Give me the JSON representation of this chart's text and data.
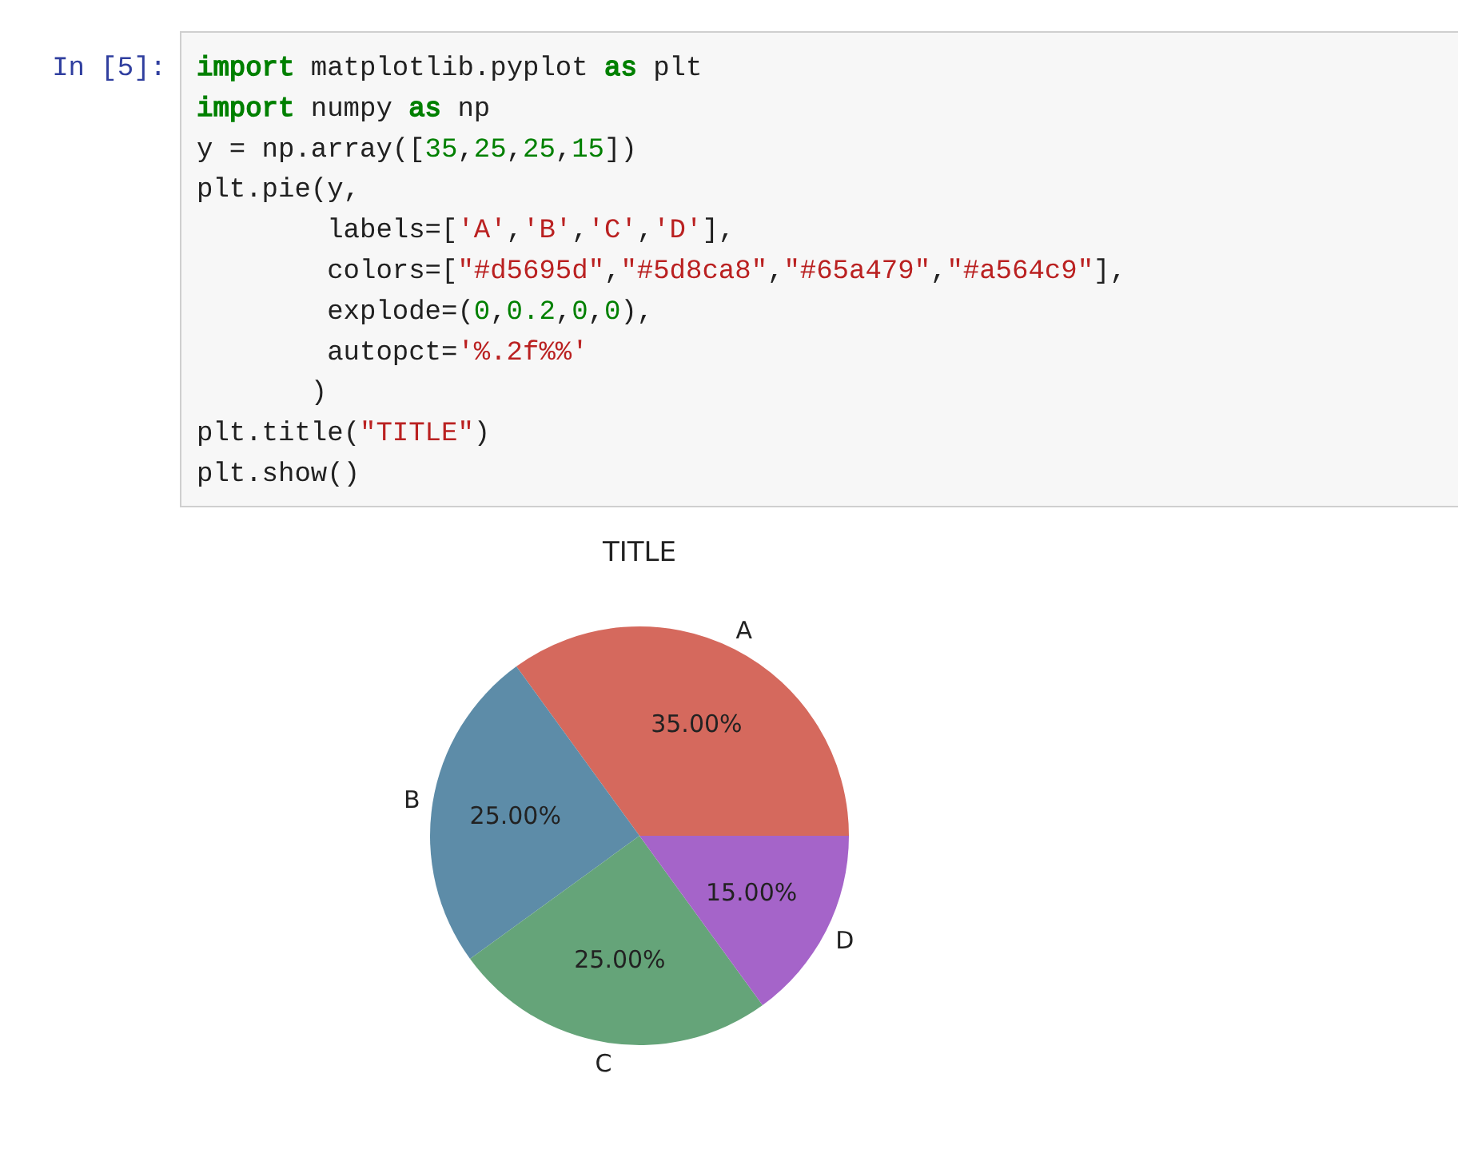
{
  "chart_data": {
    "type": "pie",
    "title": "TITLE",
    "categories": [
      "A",
      "B",
      "C",
      "D"
    ],
    "values": [
      35,
      25,
      25,
      15
    ],
    "colors": [
      "#d5695d",
      "#5d8ca8",
      "#65a479",
      "#a564c9"
    ],
    "value_labels": [
      "35.00%",
      "25.00%",
      "25.00%",
      "15.00%"
    ],
    "annotations": [
      "In [5]:",
      "import matplotlib.pyplot as plt",
      "import numpy as np",
      "y = np.array([35,25,25,15])",
      "plt.pie(y,",
      "        labels=['A','B','C','D'],",
      "        colors=[\"#d5695d\",\"#5d8ca8\",\"#65a479\",\"#a564c9\"],",
      "        explode=(0,0.2,0,0),",
      "        autopct='%.2f%%'",
      "       )",
      "plt.title(\"TITLE\")",
      "plt.show()"
    ]
  }
}
